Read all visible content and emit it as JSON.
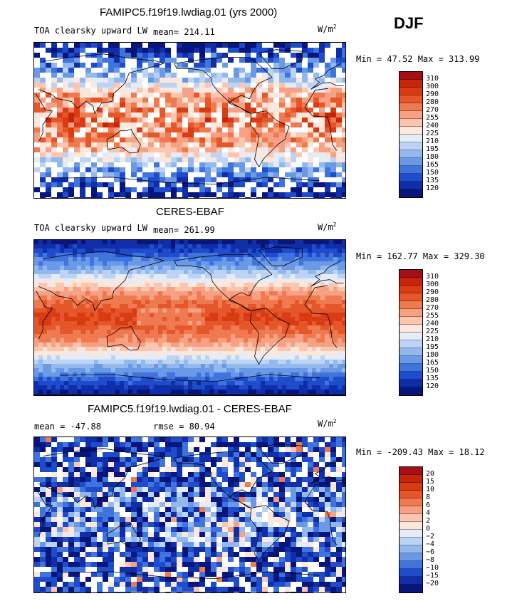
{
  "season": "DJF",
  "units_main": "W/m",
  "units_sup": "2",
  "chart_data": [
    {
      "type": "heatmap",
      "title": "FAMIPC5.f19f19.lwdiag.01 (yrs 2000)",
      "subtitle": "TOA clearsky upward LW",
      "mean_text": "mean= 214.11",
      "stats_text": "Min =  47.52 Max = 313.99",
      "min": 47.52,
      "max": 313.99,
      "mean": 214.11,
      "colorbar_levels": [
        "310",
        "300",
        "290",
        "280",
        "270",
        "255",
        "240",
        "225",
        "210",
        "195",
        "180",
        "165",
        "150",
        "135",
        "120"
      ],
      "colorbar_colors": [
        "#a50f15",
        "#c7240d",
        "#d93b14",
        "#e5562a",
        "#ef7a4f",
        "#f7a184",
        "#fcc6ae",
        "#fbe7dc",
        "#e3ecf8",
        "#bdd3f3",
        "#93b8ee",
        "#6a9ae6",
        "#3f73dd",
        "#1f4ccd",
        "#0f2ea8",
        "#08157a"
      ]
    },
    {
      "type": "heatmap",
      "title": "CERES-EBAF",
      "subtitle": "TOA clearsky upward LW",
      "mean_text": "mean= 261.99",
      "stats_text": "Min = 162.77 Max = 329.30",
      "min": 162.77,
      "max": 329.3,
      "mean": 261.99,
      "colorbar_levels": [
        "310",
        "300",
        "290",
        "280",
        "270",
        "255",
        "240",
        "225",
        "210",
        "195",
        "180",
        "165",
        "150",
        "135",
        "120"
      ],
      "colorbar_colors": [
        "#a50f15",
        "#c7240d",
        "#d93b14",
        "#e5562a",
        "#ef7a4f",
        "#f7a184",
        "#fcc6ae",
        "#fbe7dc",
        "#e3ecf8",
        "#bdd3f3",
        "#93b8ee",
        "#6a9ae6",
        "#3f73dd",
        "#1f4ccd",
        "#0f2ea8",
        "#08157a"
      ]
    },
    {
      "type": "heatmap",
      "title": "FAMIPC5.f19f19.lwdiag.01 - CERES-EBAF",
      "mean_text": "mean = -47.88",
      "rmse_text": "rmse =  80.94",
      "stats_text": "Min = -209.43 Max =  18.12",
      "min": -209.43,
      "max": 18.12,
      "mean": -47.88,
      "rmse": 80.94,
      "colorbar_levels": [
        "20",
        "15",
        "10",
        "8",
        "6",
        "4",
        "2",
        "0",
        "−2",
        "−4",
        "−6",
        "−8",
        "−10",
        "−15",
        "−20"
      ],
      "colorbar_colors": [
        "#a50f15",
        "#c7240d",
        "#d93b14",
        "#e5562a",
        "#ef7a4f",
        "#f7a184",
        "#fcc6ae",
        "#fbe7dc",
        "#e3ecf8",
        "#bdd3f3",
        "#93b8ee",
        "#6a9ae6",
        "#3f73dd",
        "#1f4ccd",
        "#0f2ea8",
        "#08157a"
      ]
    }
  ]
}
